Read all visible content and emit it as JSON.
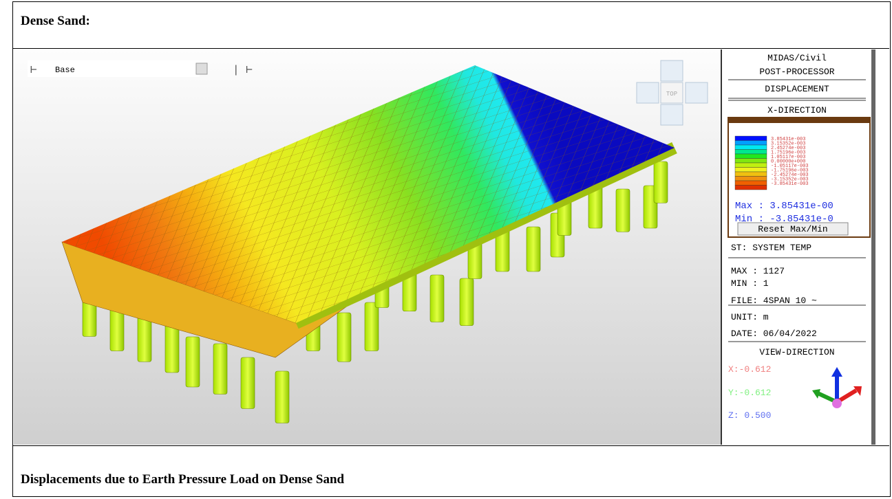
{
  "header": {
    "title": "Dense Sand:"
  },
  "toolbar": {
    "combo": "Base"
  },
  "view_cube": {
    "label": "TOP"
  },
  "panel": {
    "program": "MIDAS/Civil",
    "module": "POST-PROCESSOR",
    "result": "DISPLACEMENT",
    "component": "X-DIRECTION",
    "legend": [
      "3.85431e-003",
      "3.15352e-003",
      "2.45274e-003",
      "1.75196e-003",
      "1.05117e-003",
      "0.00000e+000",
      "-1.05117e-003",
      "-1.75196e-003",
      "-2.45274e-003",
      "-3.15352e-003",
      "-3.85431e-003"
    ],
    "max": "Max : 3.85431e-00",
    "min": "Min : -3.85431e-0",
    "reset": "Reset Max/Min",
    "info": [
      "ST: SYSTEM TEMP",
      "MAX : 1127",
      "MIN : 1",
      "FILE: 4SPAN 10 ~",
      "UNIT: m",
      "DATE: 06/04/2022"
    ],
    "view_title": "VIEW-DIRECTION",
    "view_x": "X:-0.612",
    "view_y": "Y:-0.612",
    "view_z": "Z: 0.500"
  },
  "caption": "Displacements due to Earth Pressure Load on Dense Sand"
}
